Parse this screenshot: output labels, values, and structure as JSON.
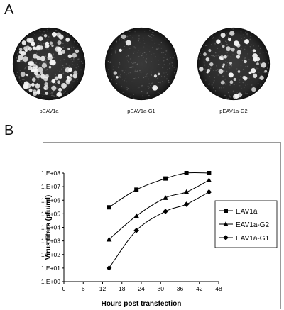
{
  "panel_a": {
    "label": "A",
    "plates": [
      {
        "caption": "pEAV1a",
        "plaque_density": 0.95
      },
      {
        "caption": "pEAV1a-G1",
        "plaque_density": 0.08
      },
      {
        "caption": "pEAV1a-G2",
        "plaque_density": 0.45
      }
    ]
  },
  "panel_b": {
    "label": "B"
  },
  "chart_data": {
    "type": "line",
    "title": "",
    "xlabel": "Hours post transfection",
    "ylabel": "Virus titers (pfu/ml)",
    "xlim": [
      0,
      48
    ],
    "xticks": [
      0,
      6,
      12,
      18,
      24,
      30,
      36,
      42,
      48
    ],
    "ylim_log10": [
      0,
      8
    ],
    "ytick_labels": [
      "1,E+00",
      "1,E+01",
      "1,E+02",
      "1,E+03",
      "1,E+04",
      "1,E+05",
      "1,E+06",
      "1,E+07",
      "1,E+08"
    ],
    "grid": false,
    "legend_position": "right",
    "series": [
      {
        "name": "EAV1a",
        "marker": "square",
        "x": [
          14,
          22.5,
          31.5,
          38,
          45
        ],
        "y": [
          300000,
          6000000,
          40000000,
          100000000,
          100000000
        ]
      },
      {
        "name": "EAV1a-G2",
        "marker": "triangle",
        "x": [
          14,
          22.5,
          31.5,
          38,
          45
        ],
        "y": [
          1300,
          70000,
          1500000,
          4000000,
          30000000
        ]
      },
      {
        "name": "EAV1a-G1",
        "marker": "diamond",
        "x": [
          14,
          22.5,
          31.5,
          38,
          45
        ],
        "y": [
          10,
          6000,
          150000,
          500000,
          4000000
        ]
      }
    ]
  }
}
